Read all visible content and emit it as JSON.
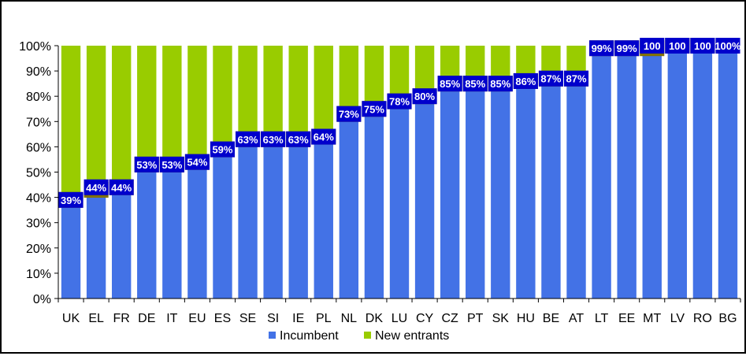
{
  "chart_data": {
    "type": "bar",
    "stacked": true,
    "percent_scale": true,
    "categories": [
      "UK",
      "EL",
      "FR",
      "DE",
      "IT",
      "EU",
      "ES",
      "SE",
      "SI",
      "IE",
      "PL",
      "NL",
      "DK",
      "LU",
      "CY",
      "CZ",
      "PT",
      "SK",
      "HU",
      "BE",
      "AT",
      "LT",
      "EE",
      "MT",
      "LV",
      "RO",
      "BG"
    ],
    "series": [
      {
        "name": "Incumbent",
        "color": "#4372E6",
        "label_bg": "#0000CC",
        "values": [
          39,
          44,
          44,
          53,
          53,
          54,
          59,
          63,
          63,
          63,
          64,
          73,
          75,
          78,
          80,
          85,
          85,
          85,
          86,
          87,
          87,
          99,
          99,
          100,
          100,
          100,
          100
        ],
        "labels": [
          "39%",
          "44%",
          "44%",
          "53%",
          "53%",
          "54%",
          "59%",
          "63%",
          "63%",
          "63%",
          "64%",
          "73%",
          "75%",
          "78%",
          "80%",
          "85%",
          "85%",
          "85%",
          "86%",
          "87%",
          "87%",
          "99%",
          "99%",
          "100",
          "100",
          "100",
          "100%"
        ]
      },
      {
        "name": "New entrants",
        "color": "#99CC00",
        "label_bg": "#807000",
        "values": [
          61,
          57,
          56,
          47,
          47,
          46,
          41,
          37,
          37,
          37,
          36,
          27,
          25,
          22,
          20,
          15,
          15,
          15,
          14,
          13,
          13,
          1,
          1,
          1,
          0,
          0,
          0
        ],
        "labels": [
          "61%",
          "57%",
          "56%",
          "47%",
          "47%",
          "46%",
          "41%",
          "37%",
          "37%",
          "37%",
          "36%",
          "27%",
          "25%",
          "22%",
          "20%",
          "15%",
          "15%",
          "15%",
          "14%",
          "13%",
          "13%",
          "1%",
          "1%",
          "1%",
          "0%",
          "0%",
          "0%"
        ]
      }
    ],
    "ylim": [
      0,
      100
    ],
    "y_ticks": [
      "0%",
      "10%",
      "20%",
      "30%",
      "40%",
      "50%",
      "60%",
      "70%",
      "80%",
      "90%",
      "100%"
    ],
    "grid": false,
    "legend_position": "bottom"
  }
}
